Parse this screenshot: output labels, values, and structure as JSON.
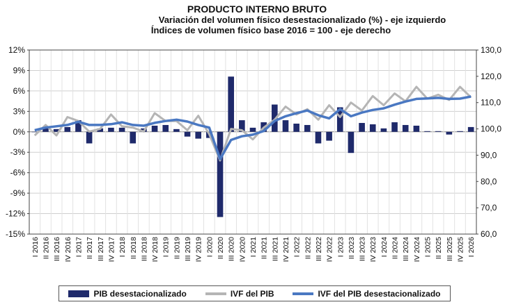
{
  "chart_data": {
    "type": "bar+line",
    "title": "PRODUCTO INTERNO BRUTO",
    "subtitle1": "Variación del volumen físico desestacionalizado (%) - eje izquierdo",
    "subtitle2": "Índices de volumen físico base 2016 = 100 - eje derecho",
    "left_axis": {
      "ylim": [
        -15,
        12
      ],
      "ticks": [
        "12%",
        "9%",
        "6%",
        "3%",
        "0%",
        "-3%",
        "-6%",
        "-9%",
        "-12%",
        "-15%"
      ]
    },
    "right_axis": {
      "ylim": [
        60,
        130
      ],
      "ticks": [
        "130,0",
        "120,0",
        "110,0",
        "100,0",
        "90,0",
        "80,0",
        "70,0",
        "60,0"
      ]
    },
    "grid": true,
    "legend_position": "bottom",
    "categories": [
      "I 2016",
      "II 2016",
      "III 2016",
      "IV 2016",
      "I 2017",
      "II 2017",
      "III 2017",
      "IV 2017",
      "I 2018",
      "II 2018",
      "III 2018",
      "IV 2018",
      "I 2019",
      "II 2019",
      "III 2019",
      "IV 2019",
      "I 2020",
      "II 2020",
      "III 2020",
      "IV 2020",
      "I 2021",
      "II 2021",
      "III 2021",
      "IV 2021",
      "I 2022",
      "II 2022",
      "III 2022",
      "IV 2022",
      "I 2023",
      "II 2023",
      "III 2023",
      "IV 2023",
      "I 2024",
      "II 2024",
      "III 2024",
      "IV 2024",
      "I 2025",
      "II 2025",
      "III 2025",
      "IV 2025",
      "I 2026"
    ],
    "series": [
      {
        "name": "PIB desestacionalizado",
        "axis": "left",
        "style": "bar",
        "color": "#1f2a6b",
        "values": [
          0,
          0.8,
          0.4,
          0.7,
          1.7,
          -1.7,
          0.5,
          0.6,
          0.6,
          -1.7,
          0.5,
          0.9,
          1.0,
          0.4,
          -0.7,
          -1.0,
          -0.9,
          -12.5,
          8.1,
          1.7,
          0.6,
          1.4,
          4.0,
          1.7,
          1.2,
          1.0,
          -1.7,
          -1.3,
          3.6,
          -3.1,
          1.3,
          1.1,
          0.5,
          1.4,
          1.0,
          0.9,
          0.1,
          0.1,
          -0.4,
          0.1,
          0.7
        ]
      },
      {
        "name": "IVF del PIB",
        "axis": "right",
        "style": "line",
        "color": "#b5b5b5",
        "values": [
          97.5,
          101.5,
          97.5,
          104.5,
          103.0,
          99.0,
          100.0,
          105.5,
          101.0,
          100.5,
          99.0,
          106.0,
          103.0,
          103.0,
          99.5,
          105.0,
          98.0,
          88.0,
          100.0,
          99.5,
          96.0,
          100.5,
          103.5,
          108.5,
          105.5,
          107.5,
          103.5,
          109.0,
          104.5,
          110.0,
          107.0,
          112.5,
          109.0,
          113.5,
          110.5,
          116.0,
          111.5,
          113.0,
          111.0,
          116.0,
          112.0
        ]
      },
      {
        "name": "IVF del PIB desestacionalizado",
        "axis": "right",
        "style": "line",
        "color": "#4a78c2",
        "values": [
          99.5,
          100.5,
          101.0,
          101.5,
          102.7,
          101.5,
          101.5,
          101.8,
          102.5,
          101.5,
          101.2,
          102.3,
          103.0,
          103.5,
          102.8,
          101.5,
          100.5,
          88.5,
          95.8,
          97.2,
          97.8,
          99.2,
          103.0,
          104.8,
          106.0,
          107.0,
          105.2,
          104.0,
          107.5,
          104.8,
          106.2,
          107.2,
          107.8,
          109.2,
          110.4,
          111.4,
          111.6,
          111.8,
          111.4,
          111.5,
          112.3
        ]
      }
    ]
  }
}
